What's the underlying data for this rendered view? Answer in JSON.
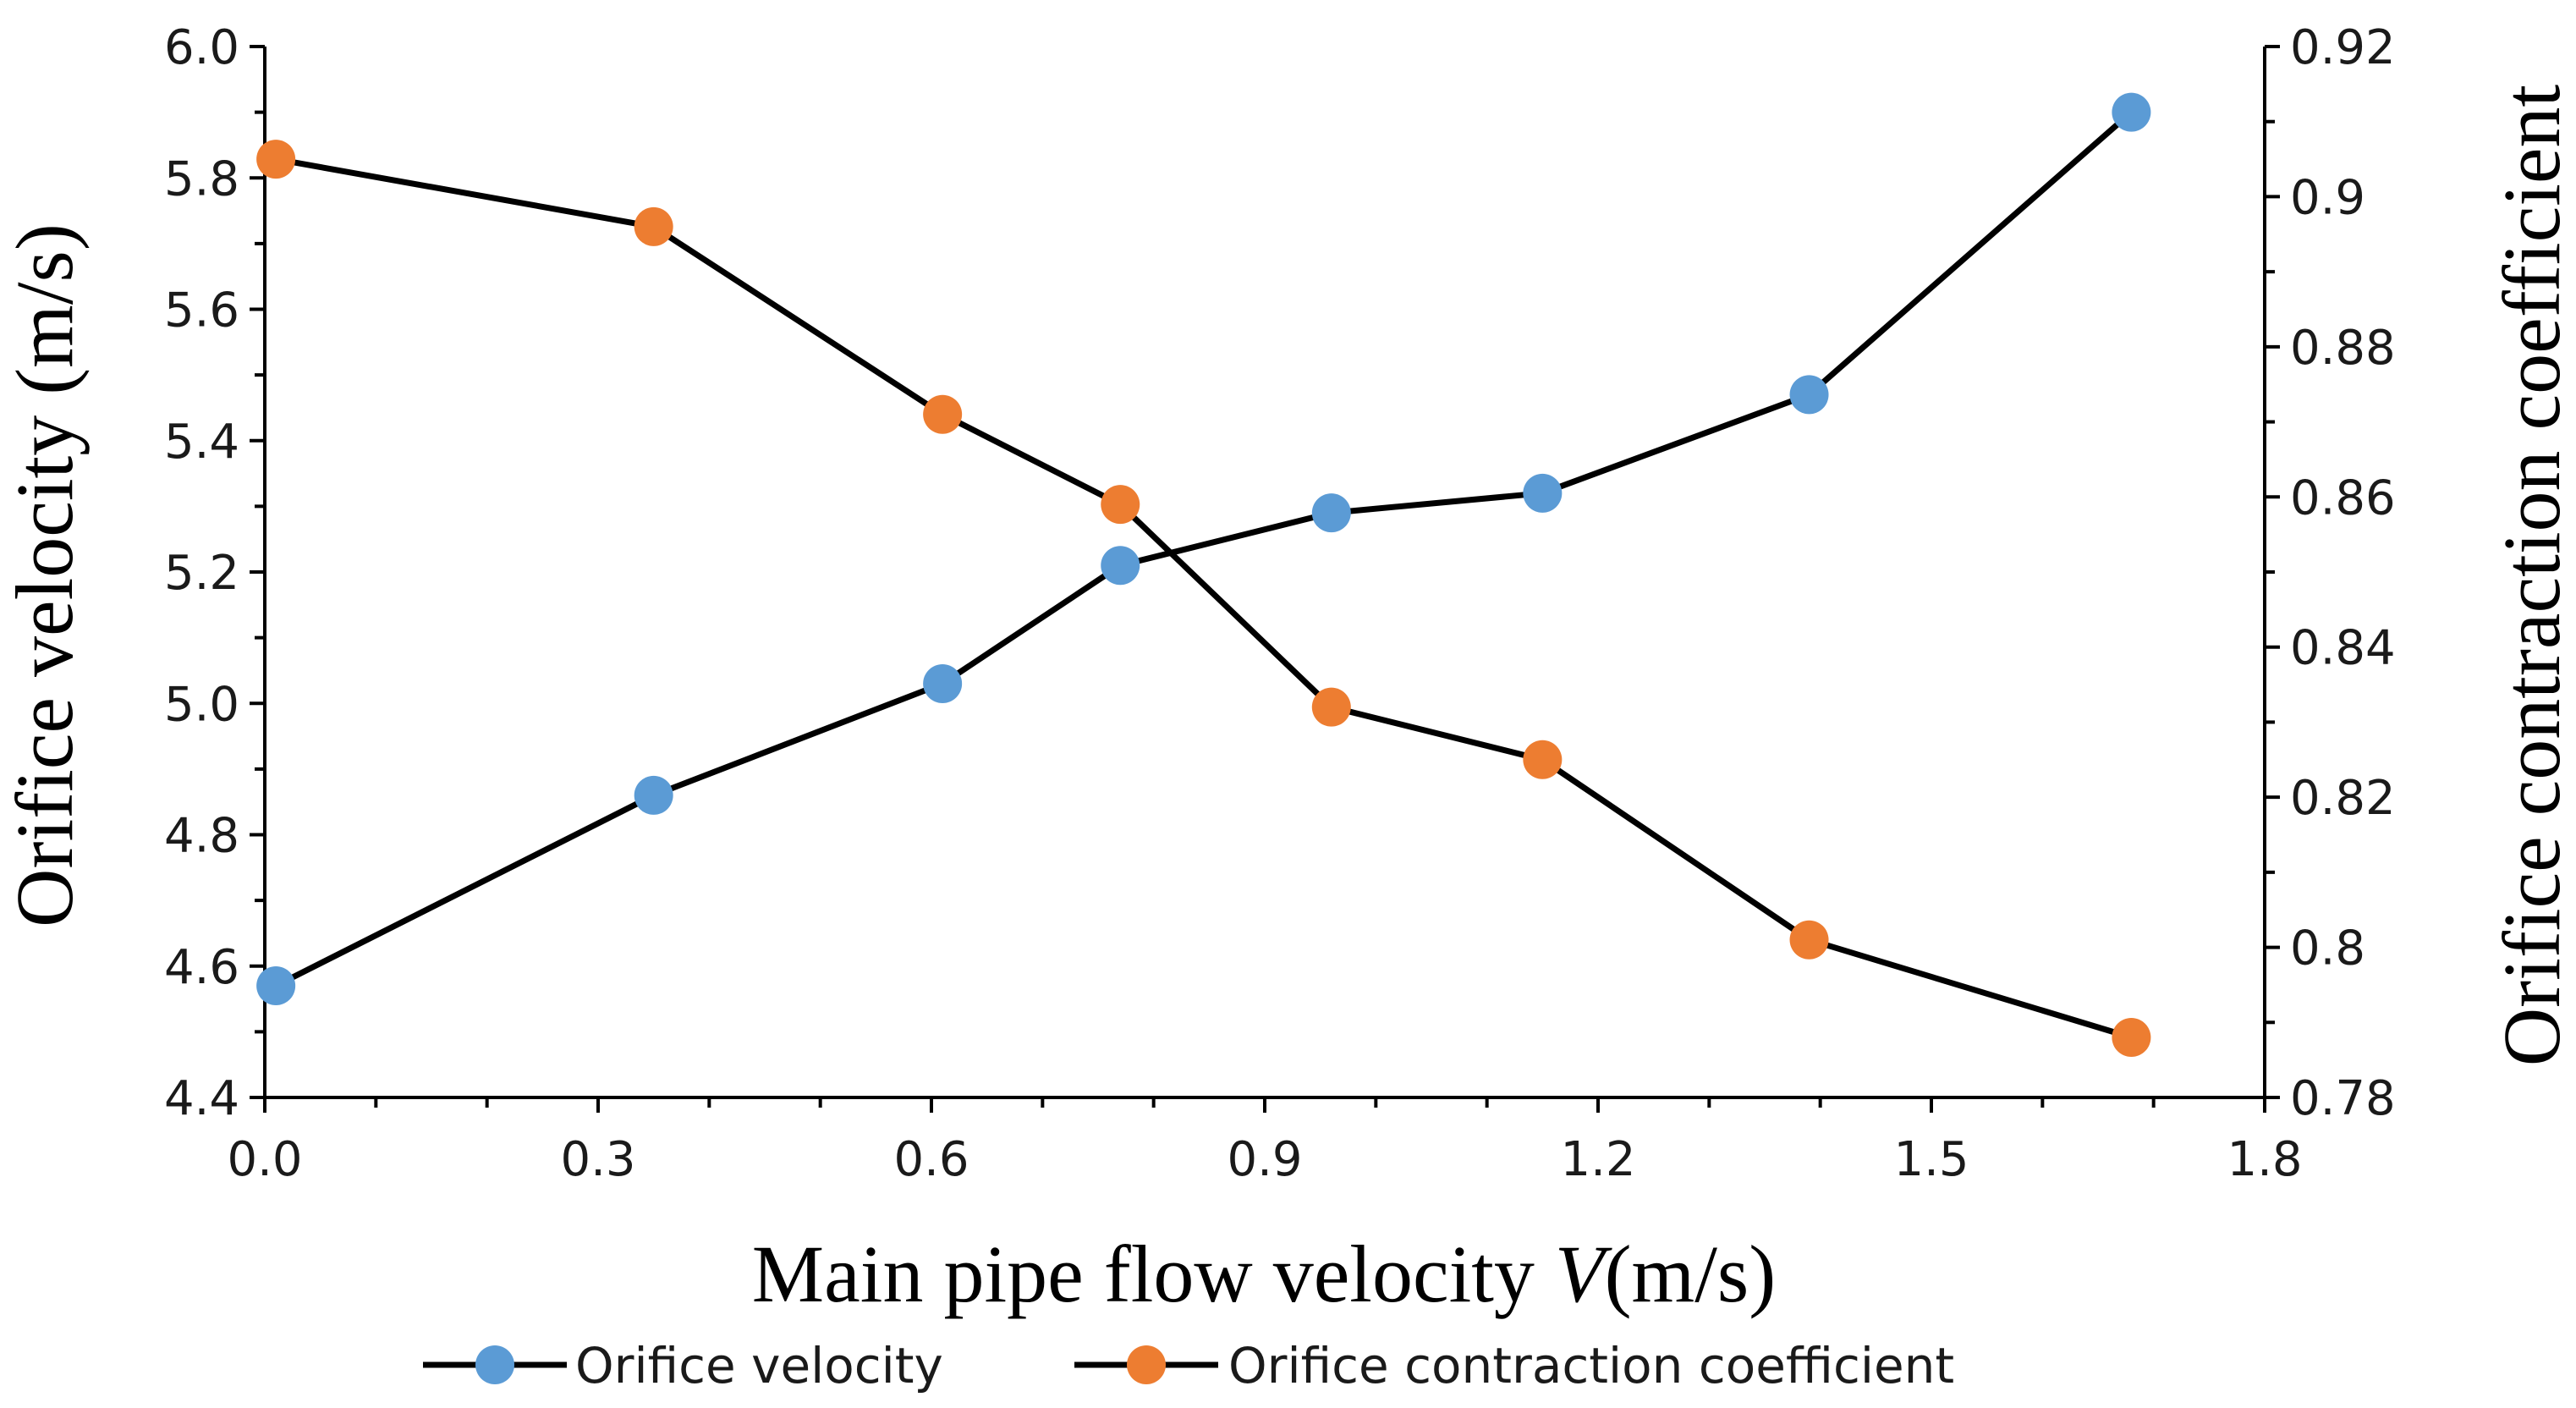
{
  "chart_data": {
    "type": "line",
    "title": "",
    "xlabel_main": "Main pipe flow velocity ",
    "xlabel_var": "V",
    "xlabel_unit": "(m/s)",
    "ylabel_left": "Orifice velocity (m/s)",
    "ylabel_right": "Orifice contraction coefficient",
    "xlim": [
      0.0,
      1.8
    ],
    "ylim_left": [
      4.4,
      6.0
    ],
    "ylim_right": [
      0.78,
      0.92
    ],
    "xticks": [
      "0.0",
      "0.3",
      "0.6",
      "0.9",
      "1.2",
      "1.5",
      "1.8"
    ],
    "yticks_left": [
      "4.4",
      "4.6",
      "4.8",
      "5.0",
      "5.2",
      "5.4",
      "5.6",
      "5.8",
      "6.0"
    ],
    "yticks_right": [
      "0.78",
      "0.8",
      "0.82",
      "0.84",
      "0.86",
      "0.88",
      "0.9",
      "0.92"
    ],
    "legend_position": "bottom",
    "series": [
      {
        "name": "Orifice velocity",
        "axis": "left",
        "color": "#5b9bd5",
        "line_color": "#000000",
        "x": [
          0.01,
          0.35,
          0.61,
          0.77,
          0.96,
          1.15,
          1.39,
          1.68
        ],
        "y": [
          4.57,
          4.86,
          5.03,
          5.21,
          5.29,
          5.32,
          5.47,
          5.9
        ]
      },
      {
        "name": "Orifice contraction coefficient",
        "axis": "right",
        "color": "#ed7d31",
        "line_color": "#000000",
        "x": [
          0.01,
          0.35,
          0.61,
          0.77,
          0.96,
          1.15,
          1.39,
          1.68
        ],
        "y": [
          0.905,
          0.896,
          0.871,
          0.859,
          0.832,
          0.825,
          0.801,
          0.788
        ]
      }
    ]
  }
}
